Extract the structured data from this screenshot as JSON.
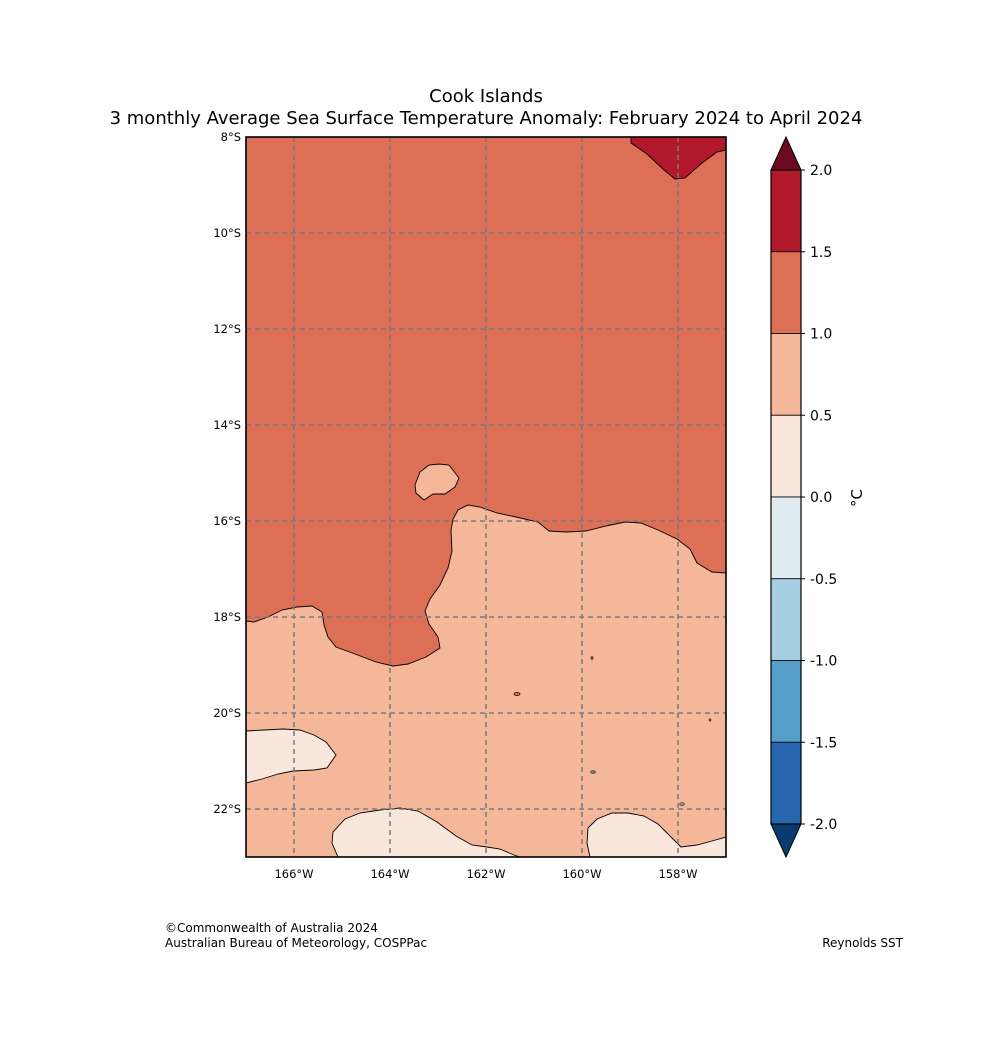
{
  "title": {
    "line1": "Cook Islands",
    "line2": "3 monthly Average Sea Surface Temperature Anomaly: February 2024 to April 2024"
  },
  "map": {
    "lat_labels": [
      "8°S",
      "10°S",
      "12°S",
      "14°S",
      "16°S",
      "18°S",
      "20°S",
      "22°S"
    ],
    "lon_labels": [
      "166°W",
      "164°W",
      "162°W",
      "160°W",
      "158°W"
    ],
    "extent": {
      "lon_min": -167.0,
      "lon_max": -157.0,
      "lat_min": -23.0,
      "lat_max": -8.0
    },
    "gridlines": true,
    "fill_colors": {
      "band_1.5_2.0": "#b2182b",
      "band_1.0_1.5": "#dd6f57",
      "band_0.5_1.0": "#f5b799",
      "band_0.0_0.5": "#f9e6dc"
    }
  },
  "colorbar": {
    "unit": "°C",
    "tick_labels": [
      "2.0",
      "1.5",
      "1.0",
      "0.5",
      "0.0",
      "-0.5",
      "-1.0",
      "-1.5",
      "-2.0"
    ],
    "levels": [
      2.0,
      1.5,
      1.0,
      0.5,
      0.0,
      -0.5,
      -1.0,
      -1.5,
      -2.0
    ],
    "band_colors": [
      "#b2182b",
      "#dd6f57",
      "#f5b799",
      "#f9e6dc",
      "#e1ecf2",
      "#a7cfe3",
      "#569fcb",
      "#2767af"
    ],
    "over_color": "#6b0a21",
    "under_color": "#0b3a70"
  },
  "footer": {
    "copyright": "©Commonwealth of Australia 2024",
    "agency": "Australian Bureau of Meteorology, COSPPac",
    "source": "Reynolds SST"
  }
}
